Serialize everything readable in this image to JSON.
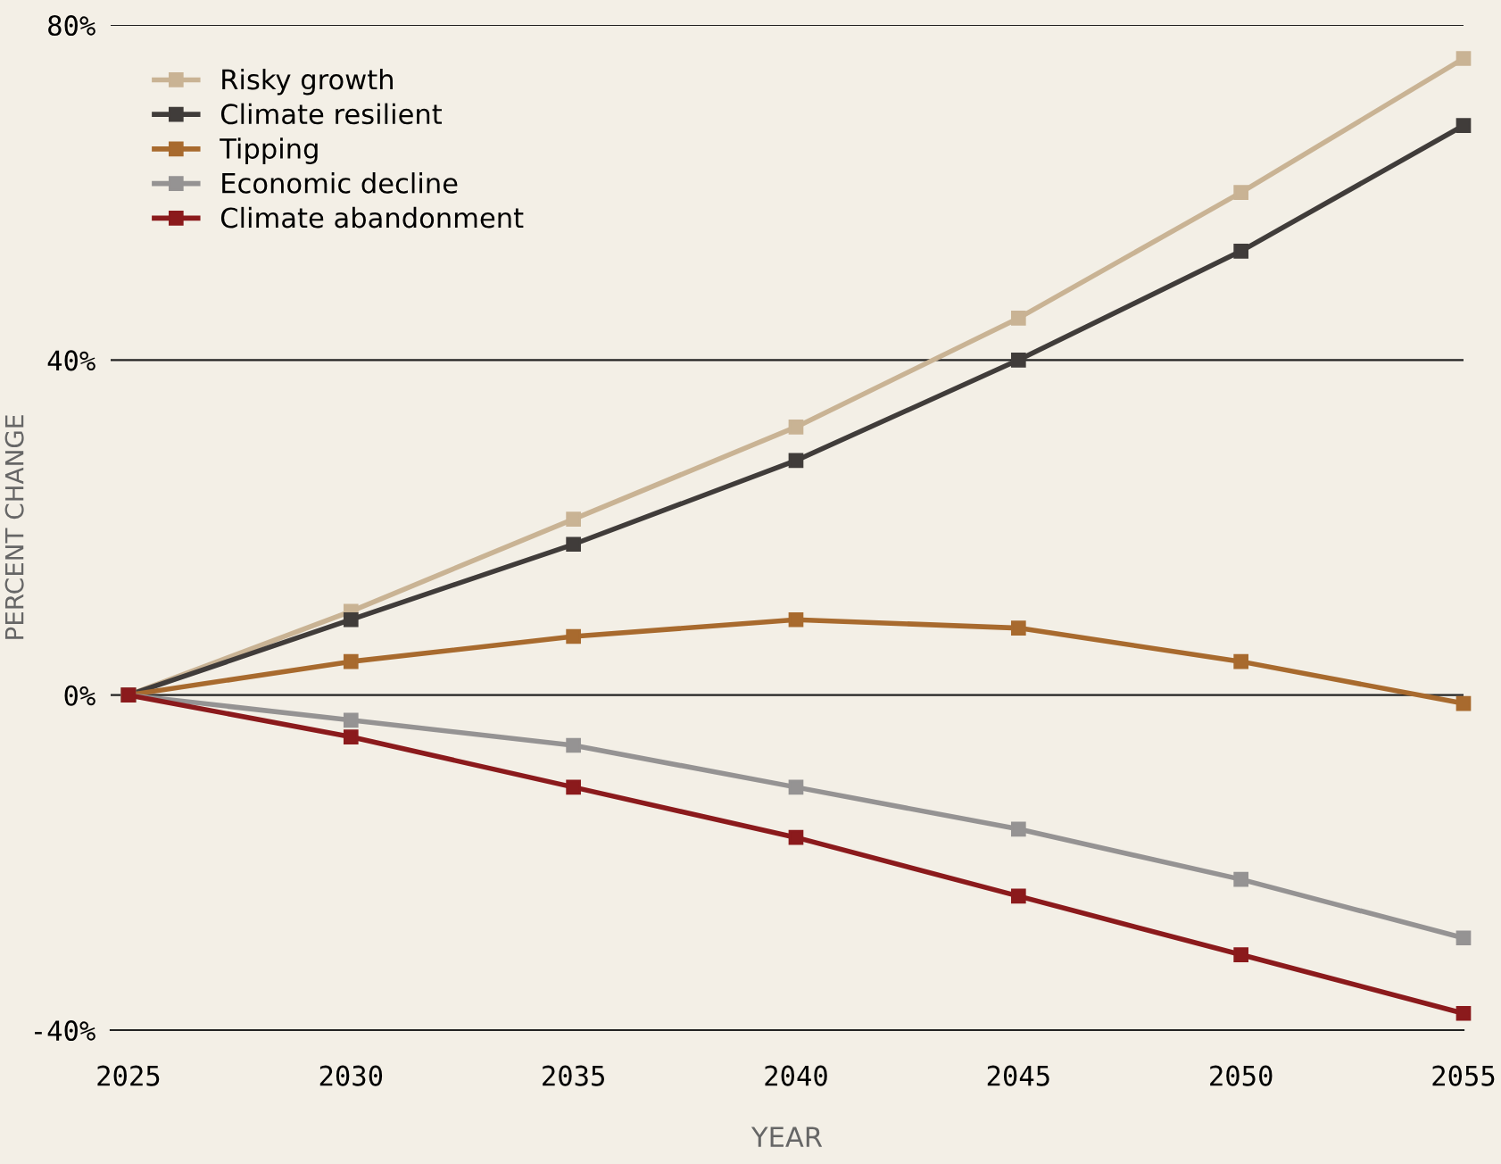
{
  "chart_data": {
    "type": "line",
    "xlabel": "YEAR",
    "ylabel": "PERCENT CHANGE",
    "x": [
      2025,
      2030,
      2035,
      2040,
      2045,
      2050,
      2055
    ],
    "series": [
      {
        "name": "Risky growth",
        "color": "#c9b394",
        "values": [
          0,
          10,
          21,
          32,
          45,
          60,
          76
        ]
      },
      {
        "name": "Climate resilient",
        "color": "#403c3a",
        "values": [
          0,
          9,
          18,
          28,
          40,
          53,
          68
        ]
      },
      {
        "name": "Tipping",
        "color": "#a86a2e",
        "values": [
          0,
          4,
          7,
          9,
          8,
          4,
          -1
        ]
      },
      {
        "name": "Economic decline",
        "color": "#959393",
        "values": [
          0,
          -3,
          -6,
          -11,
          -16,
          -22,
          -29
        ]
      },
      {
        "name": "Climate abandonment",
        "color": "#8b1a1c",
        "values": [
          0,
          -5,
          -11,
          -17,
          -24,
          -31,
          -38
        ]
      }
    ],
    "xlim": [
      2024.6,
      2055
    ],
    "xticks": [
      2025,
      2030,
      2035,
      2040,
      2045,
      2050,
      2055
    ],
    "ylim": [
      -40,
      80
    ],
    "yticks": [
      {
        "value": -40,
        "label": "-40%"
      },
      {
        "value": 0,
        "label": "0%"
      },
      {
        "value": 40,
        "label": "40%"
      },
      {
        "value": 80,
        "label": "80%"
      }
    ],
    "grid": "y",
    "legend": "top left",
    "marker": "square",
    "line_style": "solid"
  }
}
